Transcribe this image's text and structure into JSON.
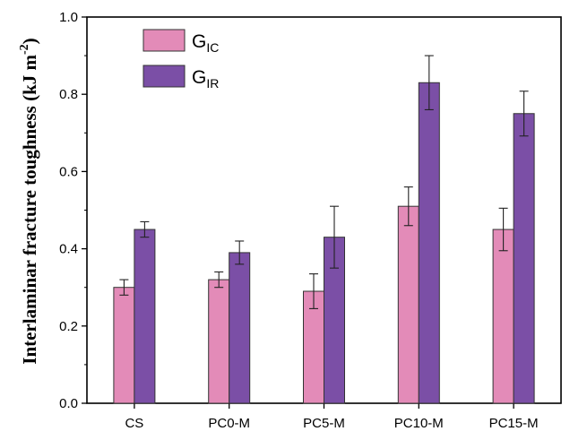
{
  "chart_data": {
    "type": "bar",
    "ylabel_main": "Interlaminar fracture toughness (kJ m",
    "ylabel_sup": "-2",
    "ylabel_close": ")",
    "xlabel": "",
    "ylim": [
      0,
      1.0
    ],
    "yticks": [
      "0.0",
      "0.2",
      "0.4",
      "0.6",
      "0.8",
      "1.0"
    ],
    "ytick_values": [
      0.0,
      0.2,
      0.4,
      0.6,
      0.8,
      1.0
    ],
    "categories": [
      "CS",
      "PC0-M",
      "PC5-M",
      "PC10-M",
      "PC15-M"
    ],
    "series": [
      {
        "name": "GIC",
        "name_base": "G",
        "name_sub": "IC",
        "color": "#e38bb8",
        "values": [
          0.3,
          0.32,
          0.29,
          0.51,
          0.45
        ],
        "errors": [
          0.02,
          0.02,
          0.045,
          0.05,
          0.055
        ]
      },
      {
        "name": "GIR",
        "name_base": "G",
        "name_sub": "IR",
        "color": "#7b4fa6",
        "values": [
          0.45,
          0.39,
          0.43,
          0.83,
          0.75
        ],
        "errors": [
          0.02,
          0.03,
          0.08,
          0.07,
          0.058
        ]
      }
    ],
    "legend_position": "top-left",
    "grid": false
  }
}
